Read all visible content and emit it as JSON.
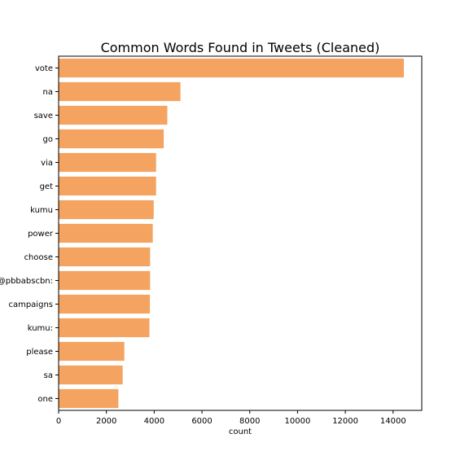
{
  "chart_data": {
    "type": "bar",
    "orientation": "horizontal",
    "title": "Common Words Found in Tweets (Cleaned)",
    "xlabel": "count",
    "ylabel": "",
    "categories": [
      "vote",
      "na",
      "save",
      "go",
      "via",
      "get",
      "kumu",
      "power",
      "choose",
      "@pbbabscbn:",
      "campaigns",
      "kumu:",
      "please",
      "sa",
      "one"
    ],
    "values": [
      14450,
      5100,
      4550,
      4400,
      4080,
      4080,
      3980,
      3940,
      3830,
      3830,
      3820,
      3800,
      2750,
      2680,
      2500
    ],
    "xlim": [
      0,
      15200
    ],
    "xticks": [
      0,
      2000,
      4000,
      6000,
      8000,
      10000,
      12000,
      14000
    ],
    "xtick_labels": [
      "0",
      "2000",
      "4000",
      "6000",
      "8000",
      "10000",
      "12000",
      "14000"
    ],
    "bar_color": "#f4a460",
    "grid": false
  }
}
